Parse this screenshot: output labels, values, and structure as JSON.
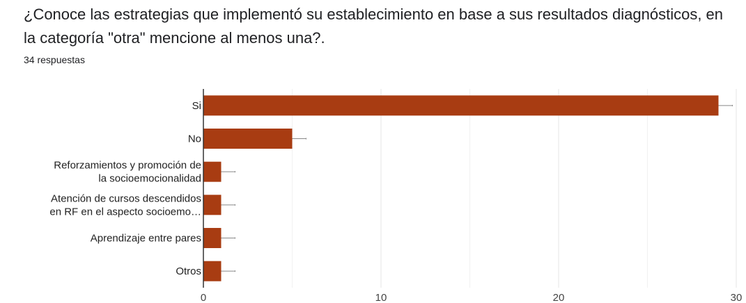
{
  "question": {
    "title": "¿Conoce  las estrategias que implementó su establecimiento en base a sus resultados diagnósticos, en la categoría \"otra\" mencione al menos una?.",
    "responses": "34 respuestas"
  },
  "colors": {
    "bar": "#a83c12",
    "grid": "#e6e6e6",
    "axis": "#333333",
    "error": "#888888"
  },
  "chart_data": {
    "type": "bar",
    "orientation": "horizontal",
    "categories": [
      [
        "Si"
      ],
      [
        "No"
      ],
      [
        "Reforzamientos y promoción de",
        "la socioemocionalidad"
      ],
      [
        "Atención de cursos descendidos",
        "en RF en el aspecto socioemo…"
      ],
      [
        "Aprendizaje entre pares"
      ],
      [
        "Otros"
      ]
    ],
    "values": [
      29,
      5,
      1,
      1,
      1,
      1
    ],
    "xlim": [
      0,
      30
    ],
    "xticks": [
      0,
      10,
      20,
      30
    ],
    "title": "",
    "xlabel": "",
    "ylabel": "",
    "grid": true,
    "legend": "none"
  }
}
